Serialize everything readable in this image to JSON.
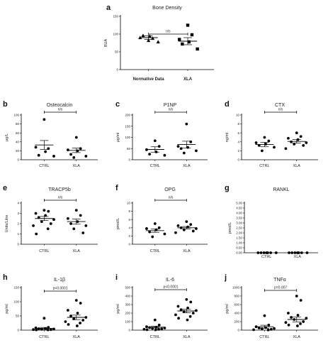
{
  "chart_data": [
    {
      "id": "a",
      "letter": "a",
      "type": "scatter",
      "title": "Bone Density",
      "ylabel": "BUA",
      "ylim": [
        0,
        150
      ],
      "yticks": [
        0,
        50,
        100,
        150
      ],
      "categories": [
        "Normative Data",
        "XLA"
      ],
      "series": [
        {
          "values": [
            82,
            88,
            90,
            94,
            96,
            78
          ],
          "markers": [
            "triangle",
            "triangle",
            "triangle",
            "triangle",
            "triangle",
            "triangle"
          ],
          "mean": 90,
          "sem": 5
        },
        {
          "values": [
            125,
            98,
            85,
            78,
            72,
            58
          ],
          "markers": [
            "square",
            "square",
            "square",
            "square",
            "square",
            "square"
          ],
          "mean": 80,
          "sem": 10
        }
      ],
      "significance": "n/s"
    },
    {
      "id": "b",
      "letter": "b",
      "type": "scatter",
      "title": "Osteocalcin",
      "ylabel": "μg/L",
      "ylim": [
        0,
        100
      ],
      "yticks": [
        0,
        20,
        40,
        60,
        80,
        100
      ],
      "categories": [
        "CTRL",
        "XLA"
      ],
      "series": [
        {
          "values": [
            90,
            25,
            28,
            18,
            10,
            8
          ],
          "mean": 33,
          "sem": 10
        },
        {
          "values": [
            50,
            25,
            22,
            20,
            12,
            8,
            5
          ],
          "mean": 21,
          "sem": 5
        }
      ],
      "significance": "n/s"
    },
    {
      "id": "c",
      "letter": "c",
      "type": "scatter",
      "title": "P1NP",
      "ylabel": "μg/ml",
      "ylim": [
        0,
        200
      ],
      "yticks": [
        0,
        50,
        100,
        150,
        200
      ],
      "categories": [
        "CTRL",
        "XLA"
      ],
      "series": [
        {
          "values": [
            85,
            60,
            45,
            35,
            25,
            20
          ],
          "mean": 46,
          "sem": 12
        },
        {
          "values": [
            160,
            80,
            60,
            55,
            50,
            40,
            30
          ],
          "mean": 68,
          "sem": 15
        }
      ],
      "significance": "n/s"
    },
    {
      "id": "d",
      "letter": "d",
      "type": "scatter",
      "title": "CTX",
      "ylabel": "ng/ml",
      "ylim": [
        0,
        10
      ],
      "yticks": [
        0,
        2,
        4,
        6,
        8,
        10
      ],
      "categories": [
        "CTRL",
        "XLA"
      ],
      "series": [
        {
          "values": [
            5.0,
            4.2,
            3.8,
            3.5,
            3.2,
            2.8,
            2.0
          ],
          "mean": 3.4,
          "sem": 0.5
        },
        {
          "values": [
            6.0,
            5.2,
            4.8,
            4.5,
            4.0,
            3.8,
            3.5,
            3.2,
            2.5
          ],
          "mean": 4.1,
          "sem": 0.4
        }
      ],
      "significance": "n/s"
    },
    {
      "id": "e",
      "letter": "e",
      "type": "scatter",
      "title": "TRACP5b",
      "ylabel": "Units/Litre",
      "ylim": [
        0,
        4
      ],
      "yticks": [
        0,
        1,
        2,
        3,
        4
      ],
      "categories": [
        "CTRL",
        "XLA"
      ],
      "series": [
        {
          "values": [
            3.3,
            3.2,
            3.0,
            2.8,
            2.6,
            2.4,
            2.2,
            2.0,
            1.8,
            1.5,
            1.0
          ],
          "mean": 2.5,
          "sem": 0.2
        },
        {
          "values": [
            3.3,
            2.8,
            2.5,
            2.2,
            2.0,
            1.8,
            1.5,
            1.1
          ],
          "mean": 2.2,
          "sem": 0.25
        }
      ],
      "significance": "n/s"
    },
    {
      "id": "f",
      "letter": "f",
      "type": "scatter",
      "title": "OPG",
      "ylabel": "pmol/L",
      "ylim": [
        0,
        10
      ],
      "yticks": [
        0,
        2,
        4,
        6,
        8,
        10
      ],
      "categories": [
        "CTRL",
        "XLA"
      ],
      "series": [
        {
          "values": [
            5.0,
            4.0,
            3.8,
            3.5,
            3.0,
            2.5,
            1.8
          ],
          "mean": 3.3,
          "sem": 0.4
        },
        {
          "values": [
            5.5,
            4.8,
            4.5,
            4.2,
            4.0,
            3.8,
            3.5,
            3.2,
            2.8
          ],
          "mean": 4.0,
          "sem": 0.3
        }
      ],
      "significance": "n/s"
    },
    {
      "id": "g",
      "letter": "g",
      "type": "scatter",
      "title": "RANKL",
      "ylabel": "pmol/L",
      "ylim": [
        0,
        5
      ],
      "yticks": [
        0.0,
        0.5,
        1.0,
        1.5,
        2.0,
        2.5,
        3.0,
        3.5,
        4.0,
        4.5,
        5.0
      ],
      "tick_format": "fixed2",
      "categories": [
        "CTRL",
        "XLA"
      ],
      "series": [
        {
          "values": [
            0,
            0,
            0,
            0,
            0,
            0,
            0
          ],
          "mean": null,
          "sem": null
        },
        {
          "values": [
            0,
            0,
            0,
            0,
            0,
            0,
            0
          ],
          "mean": null,
          "sem": null
        }
      ],
      "significance": ""
    },
    {
      "id": "h",
      "letter": "h",
      "type": "scatter",
      "title": "IL-1β",
      "ylabel": "pg/ml",
      "ylim": [
        0,
        150
      ],
      "yticks": [
        0,
        50,
        100,
        150
      ],
      "categories": [
        "CTRL",
        "XLA"
      ],
      "series": [
        {
          "values": [
            42,
            10,
            8,
            6,
            5,
            4,
            3,
            2,
            2,
            1,
            1
          ],
          "mean": 6,
          "sem": 3.5
        },
        {
          "values": [
            105,
            95,
            70,
            60,
            50,
            45,
            40,
            35,
            30,
            25,
            20,
            15
          ],
          "mean": 45,
          "sem": 8
        }
      ],
      "significance": "p<0.0001"
    },
    {
      "id": "i",
      "letter": "i",
      "type": "scatter",
      "title": "IL-6",
      "ylabel": "pg/ml",
      "ylim": [
        0,
        500
      ],
      "yticks": [
        0,
        100,
        200,
        300,
        400,
        500
      ],
      "categories": [
        "CTRL",
        "XLA"
      ],
      "series": [
        {
          "values": [
            120,
            60,
            40,
            35,
            30,
            25,
            20,
            15,
            10,
            10,
            5,
            5
          ],
          "mean": 35,
          "sem": 10
        },
        {
          "values": [
            360,
            330,
            280,
            260,
            240,
            230,
            220,
            200,
            180,
            160,
            140,
            120
          ],
          "mean": 225,
          "sem": 22
        }
      ],
      "significance": "p<0.0001"
    },
    {
      "id": "j",
      "letter": "j",
      "type": "scatter",
      "title": "TNFα",
      "ylabel": "pg/ml",
      "ylim": [
        0,
        1000
      ],
      "yticks": [
        0,
        200,
        400,
        600,
        800,
        1000
      ],
      "categories": [
        "CTRL",
        "XLA"
      ],
      "series": [
        {
          "values": [
            340,
            120,
            80,
            60,
            50,
            40,
            30,
            20,
            10,
            5
          ],
          "mean": 80,
          "sem": 35
        },
        {
          "values": [
            800,
            700,
            400,
            350,
            300,
            280,
            250,
            200,
            180,
            150,
            120,
            100
          ],
          "mean": 250,
          "sem": 55
        }
      ],
      "significance": "p=0.007"
    }
  ]
}
